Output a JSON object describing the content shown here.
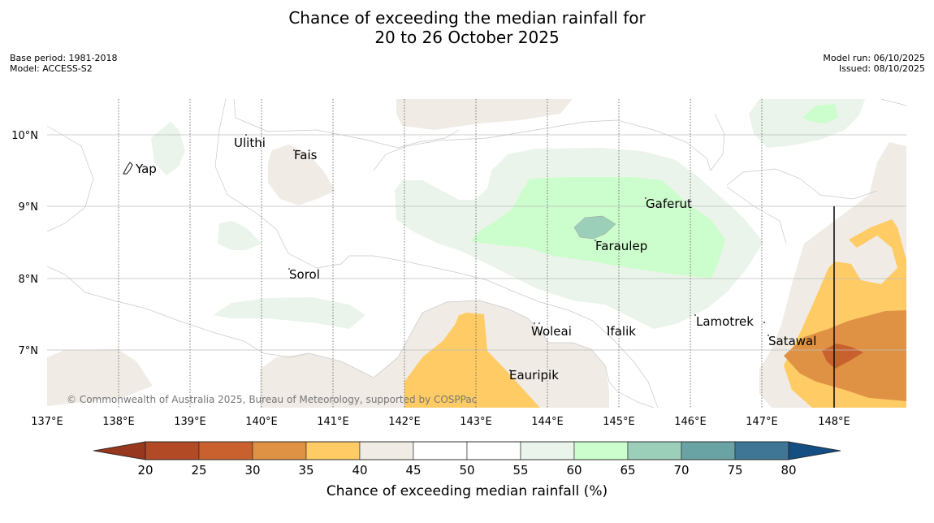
{
  "title": {
    "line1": "Chance of exceeding the median rainfall for",
    "line2": "20 to 26 October 2025"
  },
  "meta_left": {
    "base_period": "Base period: 1981-2018",
    "model": "Model: ACCESS-S2"
  },
  "meta_right": {
    "model_run": "Model run: 06/10/2025",
    "issued": "Issued: 08/10/2025"
  },
  "map": {
    "x_ticks": [
      "137°E",
      "138°E",
      "139°E",
      "140°E",
      "141°E",
      "142°E",
      "143°E",
      "144°E",
      "145°E",
      "146°E",
      "147°E",
      "148°E"
    ],
    "y_ticks": [
      "10°N",
      "9°N",
      "8°N",
      "7°N"
    ],
    "places": [
      "Ulithi",
      "Fais",
      "Yap",
      "Gaferut",
      "Faraulep",
      "Sorol",
      "Lamotrek",
      "Woleai",
      "Ifalik",
      "Satawal",
      "Eauripik"
    ],
    "copyright": "© Commonwealth of Australia 2025, Bureau of Meteorology, supported by COSPPac"
  },
  "colorbar": {
    "ticks": [
      "20",
      "25",
      "30",
      "35",
      "40",
      "45",
      "50",
      "55",
      "60",
      "65",
      "70",
      "75",
      "80"
    ],
    "colors": [
      "#b34a26",
      "#c9612f",
      "#e09244",
      "#fecb65",
      "#f0ebe5",
      "#ffffff",
      "#ffffff",
      "#eaf4ea",
      "#ccfdcc",
      "#9ccfb9",
      "#6aa3a3",
      "#3f7696"
    ],
    "under_color": "#96371e",
    "over_color": "#144e82",
    "label": "Chance of exceeding median rainfall (%)"
  }
}
